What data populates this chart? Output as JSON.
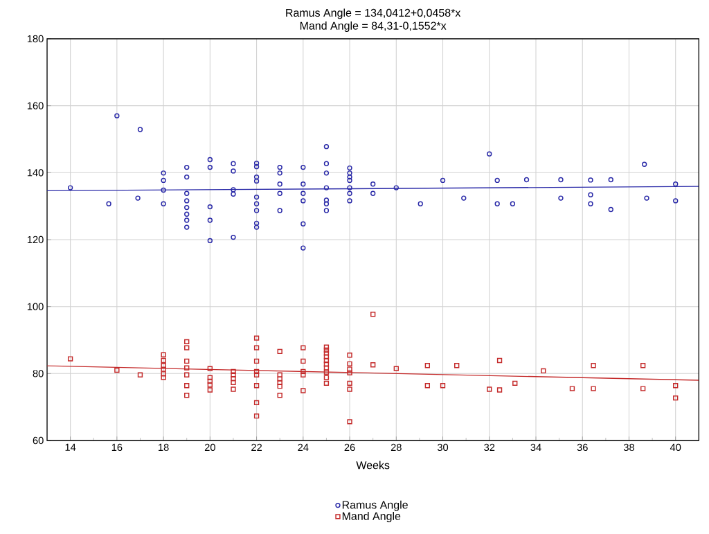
{
  "chart_data": {
    "type": "scatter",
    "title": "Ramus Angle = 134,0412+0,0458*x",
    "subtitle": "Mand Angle = 84,31-0,1552*x",
    "xlabel": "Weeks",
    "xlim": [
      13,
      41
    ],
    "ylim": [
      60,
      180
    ],
    "xticks": [
      14,
      16,
      18,
      20,
      22,
      24,
      26,
      28,
      30,
      32,
      34,
      36,
      38,
      40
    ],
    "yticks": [
      60,
      80,
      100,
      120,
      140,
      160,
      180
    ],
    "grid": true,
    "legend": "bottom",
    "series": [
      {
        "name": "Ramus Angle",
        "marker": "circle",
        "color": "#2a2aa8",
        "x": [
          14,
          16,
          15.65,
          17,
          16.9,
          18,
          18,
          18,
          18,
          19,
          19,
          19,
          19,
          19,
          19,
          19,
          19,
          20,
          20,
          20,
          20,
          20,
          21,
          21,
          21,
          21,
          21,
          22,
          22,
          22,
          22,
          22,
          22,
          22,
          22,
          22,
          23,
          23,
          23,
          23,
          23,
          24,
          24,
          24,
          24,
          24,
          24,
          25,
          25,
          25,
          25,
          25,
          25,
          25,
          26,
          26,
          26,
          26,
          26,
          26,
          26,
          27,
          27,
          28,
          29.04,
          30,
          30.9,
          32,
          32.34,
          32.34,
          33,
          33.6,
          35.07,
          35.07,
          36.35,
          36.35,
          36.35,
          37.22,
          37.22,
          38.66,
          38.76,
          40,
          40
        ],
        "values": [
          135.5,
          157,
          130.7,
          152.9,
          132.4,
          139.9,
          137.7,
          134.8,
          130.7,
          141.6,
          138.7,
          133.8,
          131.6,
          129.6,
          127.6,
          125.8,
          123.7,
          143.9,
          141.6,
          129.8,
          125.8,
          119.7,
          142.7,
          140.5,
          134.9,
          133.6,
          120.7,
          142.8,
          141.8,
          138.7,
          137.5,
          132.7,
          130.7,
          128.7,
          124.9,
          123.7,
          141.6,
          139.9,
          136.6,
          133.8,
          128.7,
          141.6,
          136.6,
          133.8,
          131.6,
          124.7,
          117.5,
          147.8,
          142.7,
          139.9,
          135.5,
          131.8,
          130.7,
          128.7,
          141.4,
          139.9,
          138.7,
          137.7,
          135.5,
          133.8,
          131.6,
          136.6,
          133.8,
          135.5,
          130.7,
          137.7,
          132.4,
          145.6,
          137.7,
          130.7,
          130.7,
          137.9,
          137.9,
          132.4,
          137.8,
          133.4,
          130.7,
          137.9,
          129.0,
          142.5,
          132.4,
          136.6,
          131.6
        ]
      },
      {
        "name": "Mand Angle",
        "marker": "square",
        "color": "#c42a2a",
        "x": [
          14,
          16,
          17,
          18,
          18,
          18,
          18,
          18,
          18,
          19,
          19,
          19,
          19,
          19,
          19,
          19,
          20,
          20,
          20,
          20,
          20,
          21,
          21,
          21,
          21,
          21,
          22,
          22,
          22,
          22,
          22,
          22,
          22,
          22,
          23,
          23,
          23,
          23,
          23,
          23,
          24,
          24,
          24,
          24,
          24,
          25,
          25,
          25,
          25,
          25,
          25,
          25,
          25,
          25,
          25,
          26,
          26,
          26,
          26,
          26,
          26,
          26,
          27,
          27,
          28,
          29.34,
          29.34,
          30,
          30.6,
          32,
          32.44,
          32.44,
          33.1,
          34.32,
          35.56,
          36.47,
          36.47,
          38.6,
          38.6,
          40,
          40
        ],
        "values": [
          84.4,
          81.0,
          79.6,
          85.6,
          83.9,
          82.4,
          81.3,
          79.9,
          78.8,
          89.5,
          87.7,
          83.7,
          81.7,
          79.6,
          76.4,
          73.5,
          81.5,
          78.8,
          77.7,
          76.6,
          75.1,
          80.6,
          79.6,
          78.5,
          77.3,
          75.3,
          90.6,
          87.7,
          83.7,
          80.6,
          79.6,
          76.4,
          71.3,
          67.3,
          86.6,
          79.6,
          78.4,
          77.3,
          76.2,
          73.5,
          87.7,
          83.7,
          80.6,
          79.6,
          74.9,
          87.9,
          87.0,
          86.1,
          85.0,
          83.9,
          82.8,
          81.7,
          80.4,
          78.8,
          77.1,
          85.5,
          82.9,
          81.3,
          80.2,
          77.1,
          75.3,
          65.6,
          97.7,
          82.6,
          81.5,
          82.4,
          76.4,
          76.4,
          82.4,
          75.3,
          83.9,
          75.1,
          77.1,
          80.8,
          75.5,
          82.4,
          75.5,
          82.4,
          75.5,
          76.4,
          72.7
        ]
      },
      {
        "type": "line",
        "color": "#2a2aa8",
        "x": [
          13,
          41
        ],
        "values": [
          134.6,
          135.9
        ]
      },
      {
        "type": "line",
        "color": "#c42a2a",
        "x": [
          13,
          41
        ],
        "values": [
          82.3,
          78.0
        ]
      }
    ]
  }
}
